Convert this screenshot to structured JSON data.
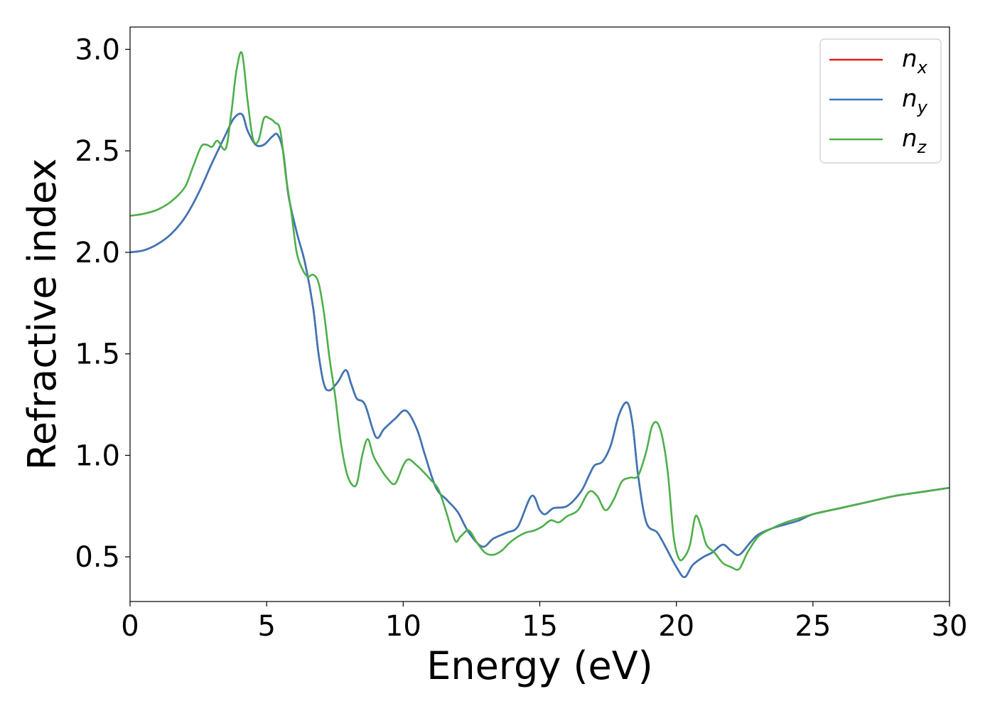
{
  "chart_data": {
    "type": "line",
    "title": "",
    "xlabel": "Energy (eV)",
    "ylabel": "Refractive index",
    "xlim": [
      0,
      30
    ],
    "ylim": [
      0.28,
      3.11
    ],
    "xticks": [
      0,
      5,
      10,
      15,
      20,
      25,
      30
    ],
    "xtick_labels": [
      "0",
      "5",
      "10",
      "15",
      "20",
      "25",
      "30"
    ],
    "yticks": [
      0.5,
      1.0,
      1.5,
      2.0,
      2.5,
      3.0
    ],
    "ytick_labels": [
      "0.5",
      "1.0",
      "1.5",
      "2.0",
      "2.5",
      "3.0"
    ],
    "grid": false,
    "legend_position": "top-right",
    "series": [
      {
        "name": "n_x",
        "label_base": "n",
        "label_sub": "x",
        "color": "#e41a1c",
        "x": [
          0,
          0.5,
          1,
          1.5,
          2,
          2.5,
          3,
          3.5,
          3.8,
          4.1,
          4.3,
          4.6,
          4.9,
          5.2,
          5.4,
          5.6,
          5.8,
          6.1,
          6.4,
          6.7,
          6.9,
          7.1,
          7.3,
          7.6,
          7.9,
          8.1,
          8.3,
          8.6,
          9.0,
          9.3,
          9.7,
          10.1,
          10.5,
          10.8,
          11.2,
          11.6,
          12.0,
          12.4,
          12.9,
          13.3,
          13.8,
          14.2,
          14.7,
          15.0,
          15.2,
          15.5,
          16.0,
          16.5,
          16.8,
          17.0,
          17.3,
          17.6,
          17.9,
          18.2,
          18.4,
          18.6,
          18.9,
          19.3,
          19.6,
          20.0,
          20.3,
          20.6,
          21.0,
          21.3,
          21.7,
          22.0,
          22.3,
          22.7,
          23.0,
          23.5,
          24,
          24.5,
          25,
          26,
          27,
          28,
          29,
          30
        ],
        "y": [
          2.0,
          2.01,
          2.04,
          2.09,
          2.17,
          2.29,
          2.44,
          2.58,
          2.66,
          2.68,
          2.6,
          2.53,
          2.53,
          2.57,
          2.58,
          2.5,
          2.28,
          2.1,
          1.95,
          1.73,
          1.5,
          1.35,
          1.32,
          1.36,
          1.42,
          1.35,
          1.28,
          1.25,
          1.09,
          1.13,
          1.18,
          1.22,
          1.13,
          1.0,
          0.84,
          0.78,
          0.72,
          0.62,
          0.55,
          0.59,
          0.62,
          0.65,
          0.8,
          0.73,
          0.71,
          0.74,
          0.75,
          0.82,
          0.9,
          0.95,
          0.97,
          1.05,
          1.2,
          1.26,
          1.15,
          0.9,
          0.67,
          0.62,
          0.55,
          0.45,
          0.4,
          0.46,
          0.5,
          0.52,
          0.56,
          0.53,
          0.51,
          0.57,
          0.61,
          0.64,
          0.66,
          0.68,
          0.71,
          0.74,
          0.77,
          0.8,
          0.82,
          0.84
        ]
      },
      {
        "name": "n_y",
        "label_base": "n",
        "label_sub": "y",
        "color": "#3a77b8",
        "x": [
          0,
          0.5,
          1,
          1.5,
          2,
          2.5,
          3,
          3.5,
          3.8,
          4.1,
          4.3,
          4.6,
          4.9,
          5.2,
          5.4,
          5.6,
          5.8,
          6.1,
          6.4,
          6.7,
          6.9,
          7.1,
          7.3,
          7.6,
          7.9,
          8.1,
          8.3,
          8.6,
          9.0,
          9.3,
          9.7,
          10.1,
          10.5,
          10.8,
          11.2,
          11.6,
          12.0,
          12.4,
          12.9,
          13.3,
          13.8,
          14.2,
          14.7,
          15.0,
          15.2,
          15.5,
          16.0,
          16.5,
          16.8,
          17.0,
          17.3,
          17.6,
          17.9,
          18.2,
          18.4,
          18.6,
          18.9,
          19.3,
          19.6,
          20.0,
          20.3,
          20.6,
          21.0,
          21.3,
          21.7,
          22.0,
          22.3,
          22.7,
          23.0,
          23.5,
          24,
          24.5,
          25,
          26,
          27,
          28,
          29,
          30
        ],
        "y": [
          2.0,
          2.01,
          2.04,
          2.09,
          2.17,
          2.29,
          2.44,
          2.58,
          2.66,
          2.68,
          2.6,
          2.53,
          2.53,
          2.57,
          2.58,
          2.5,
          2.28,
          2.1,
          1.95,
          1.73,
          1.5,
          1.35,
          1.32,
          1.36,
          1.42,
          1.35,
          1.28,
          1.25,
          1.09,
          1.13,
          1.18,
          1.22,
          1.13,
          1.0,
          0.84,
          0.78,
          0.72,
          0.62,
          0.55,
          0.59,
          0.62,
          0.65,
          0.8,
          0.73,
          0.71,
          0.74,
          0.75,
          0.82,
          0.9,
          0.95,
          0.97,
          1.05,
          1.2,
          1.26,
          1.15,
          0.9,
          0.67,
          0.62,
          0.55,
          0.45,
          0.4,
          0.46,
          0.5,
          0.52,
          0.56,
          0.53,
          0.51,
          0.57,
          0.61,
          0.64,
          0.66,
          0.68,
          0.71,
          0.74,
          0.77,
          0.8,
          0.82,
          0.84
        ]
      },
      {
        "name": "n_z",
        "label_base": "n",
        "label_sub": "z",
        "color": "#4daf4a",
        "x": [
          0,
          0.5,
          1,
          1.5,
          2,
          2.3,
          2.6,
          2.8,
          3.0,
          3.2,
          3.5,
          3.7,
          3.9,
          4.1,
          4.3,
          4.5,
          4.7,
          4.9,
          5.1,
          5.3,
          5.5,
          5.7,
          5.9,
          6.1,
          6.3,
          6.5,
          6.7,
          6.9,
          7.1,
          7.3,
          7.5,
          7.7,
          7.9,
          8.1,
          8.3,
          8.5,
          8.7,
          8.9,
          9.1,
          9.4,
          9.7,
          10.0,
          10.2,
          10.5,
          10.8,
          11.0,
          11.3,
          11.6,
          11.9,
          12.1,
          12.4,
          12.7,
          13.0,
          13.3,
          13.6,
          13.9,
          14.2,
          14.5,
          14.8,
          15.1,
          15.4,
          15.7,
          16.0,
          16.4,
          16.8,
          17.1,
          17.4,
          17.7,
          18.0,
          18.3,
          18.6,
          18.9,
          19.1,
          19.3,
          19.5,
          19.7,
          19.9,
          20.1,
          20.3,
          20.5,
          20.7,
          20.9,
          21.1,
          21.4,
          21.7,
          22.0,
          22.3,
          22.6,
          23.0,
          23.5,
          24,
          24.5,
          25,
          26,
          27,
          28,
          29,
          30
        ],
        "y": [
          2.18,
          2.19,
          2.21,
          2.25,
          2.32,
          2.42,
          2.52,
          2.53,
          2.52,
          2.55,
          2.51,
          2.68,
          2.9,
          2.98,
          2.75,
          2.56,
          2.55,
          2.66,
          2.66,
          2.64,
          2.6,
          2.38,
          2.2,
          2.0,
          1.92,
          1.88,
          1.89,
          1.85,
          1.7,
          1.48,
          1.3,
          1.08,
          0.93,
          0.86,
          0.86,
          1.0,
          1.08,
          1.0,
          0.95,
          0.89,
          0.86,
          0.95,
          0.98,
          0.95,
          0.91,
          0.88,
          0.83,
          0.71,
          0.58,
          0.6,
          0.63,
          0.57,
          0.52,
          0.51,
          0.53,
          0.57,
          0.6,
          0.62,
          0.63,
          0.65,
          0.68,
          0.67,
          0.7,
          0.73,
          0.82,
          0.8,
          0.73,
          0.78,
          0.87,
          0.89,
          0.9,
          1.02,
          1.14,
          1.16,
          1.08,
          0.9,
          0.6,
          0.49,
          0.5,
          0.56,
          0.7,
          0.65,
          0.56,
          0.52,
          0.47,
          0.45,
          0.44,
          0.52,
          0.6,
          0.64,
          0.67,
          0.69,
          0.71,
          0.74,
          0.77,
          0.8,
          0.82,
          0.84
        ]
      }
    ]
  }
}
